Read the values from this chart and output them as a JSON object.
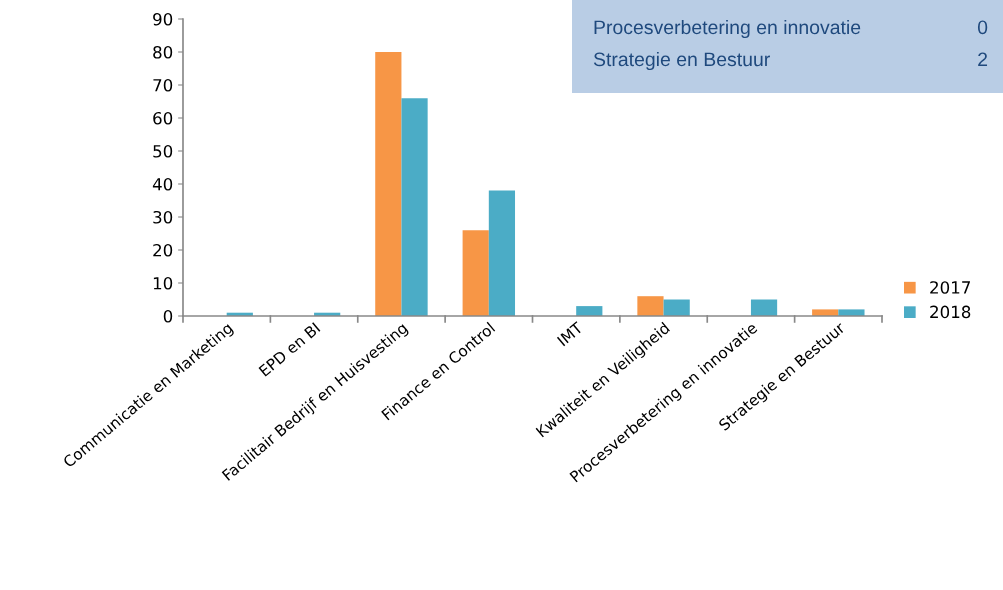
{
  "chart_data": {
    "type": "bar",
    "categories": [
      "Communicatie en Marketing",
      "EPD en BI",
      "Facilitair Bedrijf en Huisvesting",
      "Finance en Control",
      "IMT",
      "Kwaliteit en Veiligheid",
      "Procesverbetering en innovatie",
      "Strategie en Bestuur"
    ],
    "series": [
      {
        "name": "2017",
        "color": "#f79646",
        "values": [
          0,
          0,
          80,
          26,
          0,
          6,
          0,
          2
        ]
      },
      {
        "name": "2018",
        "color": "#4bacc6",
        "values": [
          1,
          1,
          66,
          38,
          3,
          5,
          5,
          2
        ]
      }
    ],
    "ylim": [
      0,
      90
    ],
    "yticks": [
      0,
      10,
      20,
      30,
      40,
      50,
      60,
      70,
      80,
      90
    ],
    "grid": false,
    "legend": "right",
    "annotations": [
      "Procesverbetering en innovatie",
      "0",
      "Strategie en Bestuur",
      "2"
    ]
  }
}
